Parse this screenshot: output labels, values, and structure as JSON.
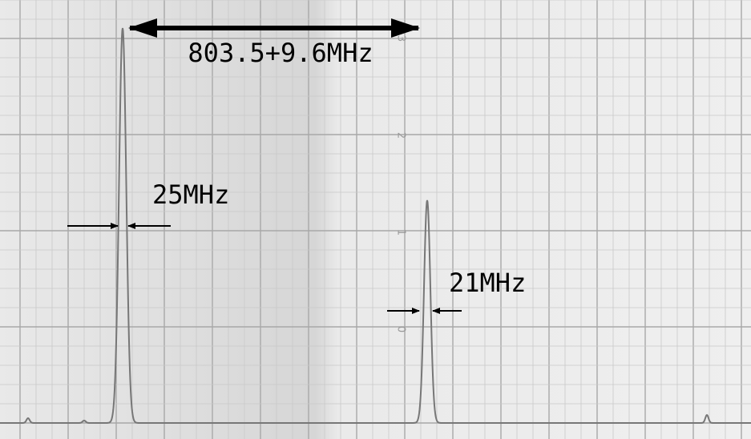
{
  "annotations": {
    "separation": "803.5+9.6MHz",
    "width_left": "25MHz",
    "width_right": "21MHz"
  },
  "scale_labels": [
    "3",
    "2",
    "1",
    "0"
  ]
}
